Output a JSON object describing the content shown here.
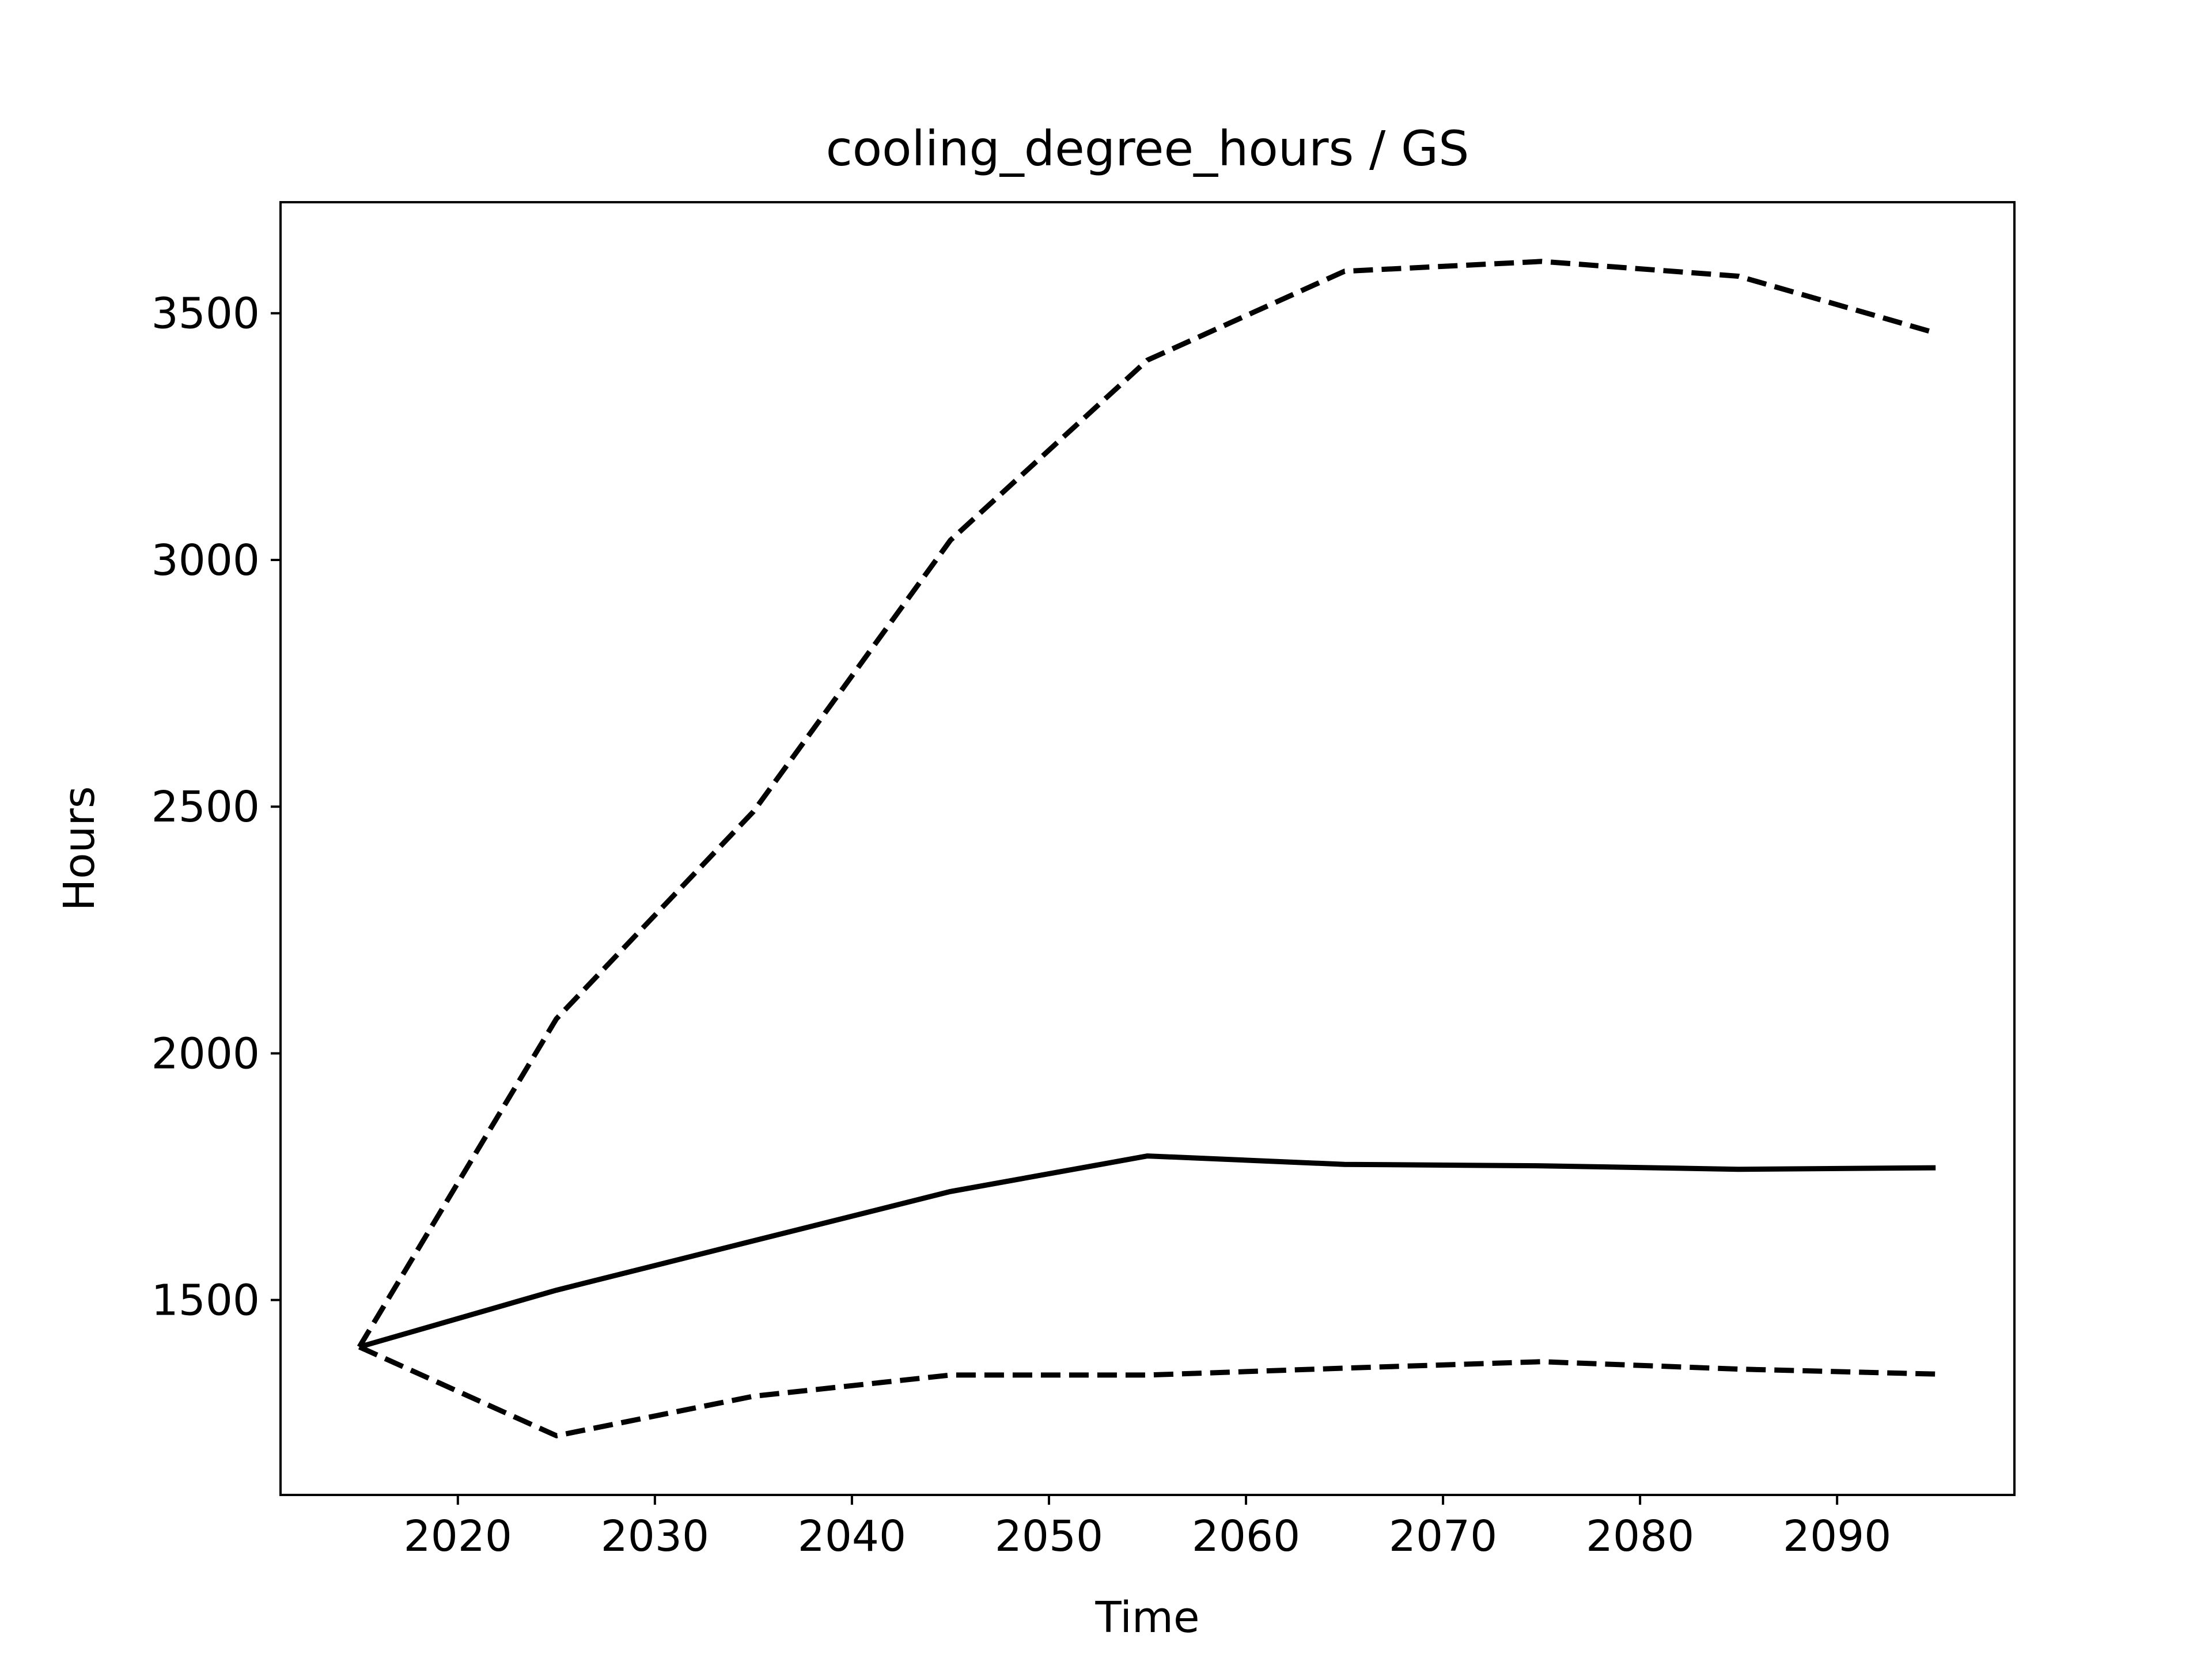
{
  "chart_data": {
    "type": "line",
    "title": "cooling_degree_hours / GS",
    "xlabel": "Time",
    "ylabel": "Hours",
    "xlim": [
      2011,
      2099
    ],
    "ylim": [
      1105,
      3725
    ],
    "xticks": [
      2020,
      2030,
      2040,
      2050,
      2060,
      2070,
      2080,
      2090
    ],
    "yticks": [
      1500,
      2000,
      2500,
      3000,
      3500
    ],
    "grid": false,
    "legend": "none",
    "x": [
      2015,
      2025,
      2035,
      2045,
      2055,
      2065,
      2075,
      2085,
      2095
    ],
    "series": [
      {
        "style": "solid",
        "color": "#000000",
        "values": [
          1405,
          1520,
          1620,
          1720,
          1792,
          1775,
          1772,
          1765,
          1768
        ]
      },
      {
        "style": "dashed",
        "color": "#000000",
        "values": [
          1405,
          2070,
          2490,
          3040,
          3405,
          3585,
          3605,
          3575,
          3460
        ]
      },
      {
        "style": "dashed",
        "color": "#000000",
        "values": [
          1405,
          1225,
          1305,
          1348,
          1348,
          1362,
          1375,
          1360,
          1350
        ]
      }
    ]
  }
}
